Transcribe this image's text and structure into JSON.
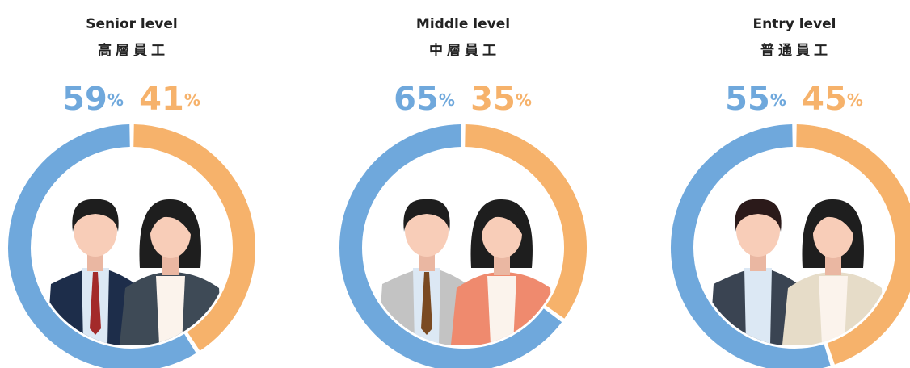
{
  "chart_data": [
    {
      "type": "donut",
      "title": "Senior level",
      "subtitle": "高層員工",
      "values": [
        59,
        41
      ],
      "value_labels": [
        "59%",
        "41%"
      ],
      "colors": [
        "#6fa8dc",
        "#f6b26b"
      ]
    },
    {
      "type": "donut",
      "title": "Middle level",
      "subtitle": "中層員工",
      "values": [
        65,
        35
      ],
      "value_labels": [
        "65%",
        "35%"
      ],
      "colors": [
        "#6fa8dc",
        "#f6b26b"
      ]
    },
    {
      "type": "donut",
      "title": "Entry level",
      "subtitle": "普通員工",
      "values": [
        55,
        45
      ],
      "value_labels": [
        "55%",
        "45%"
      ],
      "colors": [
        "#6fa8dc",
        "#f6b26b"
      ]
    }
  ]
}
